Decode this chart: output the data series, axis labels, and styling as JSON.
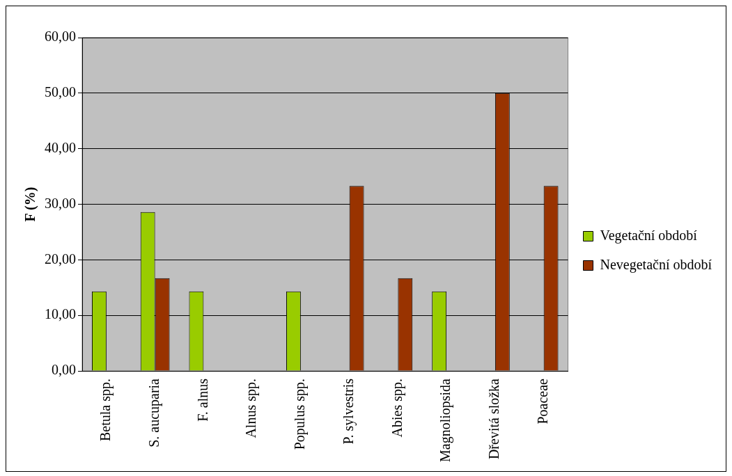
{
  "chart_data": {
    "type": "bar",
    "ylabel": "F (%)",
    "categories": [
      "Betula spp.",
      "S. aucuparia",
      "F. alnus",
      "Alnus spp.",
      "Populus spp.",
      "P. sylvestris",
      "Abies spp.",
      "Magnoliopsida",
      "Dřevitá složka",
      "Poaceae"
    ],
    "series": [
      {
        "name": "Vegetační období",
        "color": "#99cc00",
        "values": [
          14.3,
          28.6,
          14.3,
          0,
          14.3,
          0,
          0,
          14.3,
          0,
          0
        ]
      },
      {
        "name": "Nevegetační období",
        "color": "#993300",
        "values": [
          0,
          16.7,
          0,
          0,
          0,
          33.3,
          16.7,
          0,
          50,
          33.3
        ]
      }
    ],
    "ylim": [
      0,
      60
    ],
    "yticks": [
      {
        "value": 0,
        "label": "0,00"
      },
      {
        "value": 10,
        "label": "10,00"
      },
      {
        "value": 20,
        "label": "20,00"
      },
      {
        "value": 30,
        "label": "30,00"
      },
      {
        "value": 40,
        "label": "40,00"
      },
      {
        "value": 50,
        "label": "50,00"
      },
      {
        "value": 60,
        "label": "60,00"
      }
    ],
    "grid": "y",
    "legend": "right"
  }
}
